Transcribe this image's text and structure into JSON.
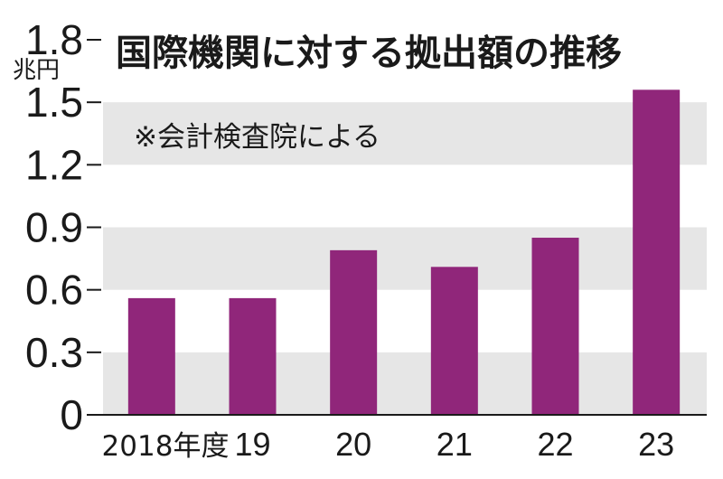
{
  "chart_data": {
    "type": "bar",
    "title": "国際機関に対する拠出額の推移",
    "note": "※会計検査院による",
    "unit": "兆円",
    "categories": [
      "2018年度",
      "19",
      "20",
      "21",
      "22",
      "23"
    ],
    "values": [
      0.56,
      0.56,
      0.79,
      0.71,
      0.85,
      1.56
    ],
    "ylim": [
      0,
      1.8
    ],
    "yticks": [
      "0",
      "0.3",
      "0.6",
      "0.9",
      "1.2",
      "1.5",
      "1.8"
    ],
    "bar_color": "#90267a",
    "band_color": "#e6e6e6",
    "grid": false,
    "legend": "none"
  }
}
